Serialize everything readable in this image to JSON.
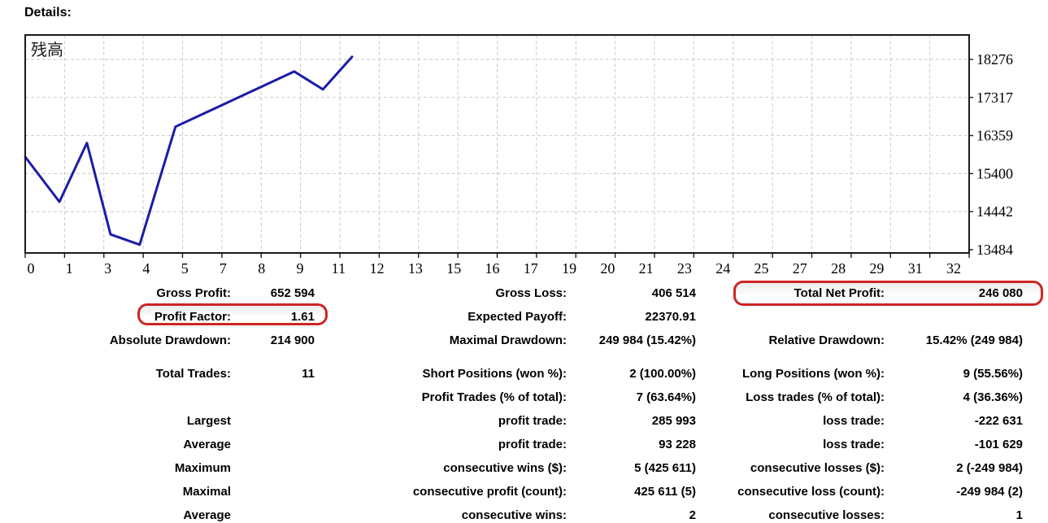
{
  "page": {
    "heading": "Details:"
  },
  "chart": {
    "label": "残高",
    "line_color": "#1b1ba8",
    "grid_color": "#c9c9c9",
    "border_color": "#1a1a1a"
  },
  "chart_data": {
    "type": "line",
    "title": "残高 (Balance curve)",
    "xlabel": "",
    "ylabel": "",
    "grid": true,
    "legend": false,
    "x_axis": {
      "tick_labels": [
        "0",
        "1",
        "3",
        "4",
        "5",
        "7",
        "8",
        "9",
        "11",
        "12",
        "13",
        "15",
        "16",
        "17",
        "19",
        "20",
        "21",
        "23",
        "24",
        "25",
        "27",
        "28",
        "29",
        "31",
        "32"
      ],
      "note": "x values of points are in gridline units (evenly spaced ticks)"
    },
    "y_axis": {
      "ticks": [
        18276,
        17317,
        16359,
        15400,
        14442,
        13484
      ],
      "ylim": [
        13400,
        18890
      ]
    },
    "series": [
      {
        "name": "残高",
        "points": [
          [
            0,
            15820
          ],
          [
            0.87,
            14690
          ],
          [
            1.57,
            16170
          ],
          [
            2.17,
            13870
          ],
          [
            2.91,
            13610
          ],
          [
            3.82,
            16580
          ],
          [
            6.84,
            17970
          ],
          [
            7.57,
            17520
          ],
          [
            8.31,
            18340
          ]
        ]
      }
    ]
  },
  "stats": {
    "highlight_color": "#ce2424",
    "rows": [
      {
        "l1": "Gross Profit:",
        "v1": "652 594",
        "l2": "Gross Loss:",
        "v2": "406 514",
        "l3": "Total Net Profit:",
        "v3": "246 080"
      },
      {
        "l1": "Profit Factor:",
        "v1": "1.61",
        "l2": "Expected Payoff:",
        "v2": "22370.91",
        "l3": "",
        "v3": ""
      },
      {
        "l1": "Absolute Drawdown:",
        "v1": "214 900",
        "l2": "Maximal Drawdown:",
        "v2": "249 984 (15.42%)",
        "l3": "Relative Drawdown:",
        "v3": "15.42% (249 984)"
      },
      {
        "l1": "Total Trades:",
        "v1": "11",
        "l2": "Short Positions (won %):",
        "v2": "2 (100.00%)",
        "l3": "Long Positions (won %):",
        "v3": "9 (55.56%)"
      },
      {
        "l1": "",
        "v1": "",
        "l2": "Profit Trades (% of total):",
        "v2": "7 (63.64%)",
        "l3": "Loss trades (% of total):",
        "v3": "4 (36.36%)"
      },
      {
        "l1": "Largest",
        "v1": "",
        "l2": "profit trade:",
        "v2": "285 993",
        "l3": "loss trade:",
        "v3": "-222 631"
      },
      {
        "l1": "Average",
        "v1": "",
        "l2": "profit trade:",
        "v2": "93 228",
        "l3": "loss trade:",
        "v3": "-101 629"
      },
      {
        "l1": "Maximum",
        "v1": "",
        "l2": "consecutive wins ($):",
        "v2": "5 (425 611)",
        "l3": "consecutive losses ($):",
        "v3": "2 (-249 984)"
      },
      {
        "l1": "Maximal",
        "v1": "",
        "l2": "consecutive profit (count):",
        "v2": "425 611 (5)",
        "l3": "consecutive loss (count):",
        "v3": "-249 984 (2)"
      },
      {
        "l1": "Average",
        "v1": "",
        "l2": "consecutive wins:",
        "v2": "2",
        "l3": "consecutive losses:",
        "v3": "1"
      }
    ]
  }
}
